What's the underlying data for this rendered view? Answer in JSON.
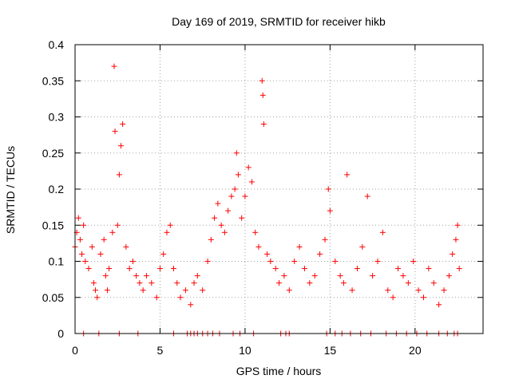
{
  "chart_data": {
    "type": "scatter",
    "title": "Day 169 of 2019, SRMTID for receiver hikb",
    "xlabel": "GPS time / hours",
    "ylabel": "SRMTID / TECUs",
    "xlim": [
      0,
      24
    ],
    "ylim": [
      0,
      0.4
    ],
    "x_ticks": [
      0,
      5,
      10,
      15,
      20
    ],
    "x_tick_labels": [
      "0",
      "5",
      "10",
      "15",
      "20"
    ],
    "y_ticks": [
      0,
      0.05,
      0.1,
      0.15,
      0.2,
      0.25,
      0.3,
      0.35,
      0.4
    ],
    "y_tick_labels": [
      "0",
      "0.05",
      "0.1",
      "0.15",
      "0.2",
      "0.25",
      "0.3",
      "0.35",
      "0.4"
    ],
    "grid": true,
    "marker": "+",
    "color": "#ff0000",
    "series": [
      {
        "x": [
          0.0,
          0.1,
          0.2,
          0.3,
          0.4,
          0.5,
          0.6,
          0.8,
          1.0,
          1.1,
          1.2,
          1.3,
          1.5,
          1.7,
          1.8,
          1.9,
          2.0,
          2.2,
          2.3,
          2.35,
          2.5,
          2.6,
          2.7,
          2.8,
          3.0,
          3.2,
          3.4,
          3.6,
          3.8,
          4.0,
          4.2,
          4.5,
          4.8,
          5.0,
          5.2,
          5.4,
          5.6,
          5.8,
          6.0,
          6.2,
          6.5,
          6.8,
          7.0,
          7.2,
          7.5,
          7.8,
          8.0,
          8.2,
          8.4,
          8.6,
          8.8,
          9.0,
          9.2,
          9.4,
          9.5,
          9.6,
          9.8,
          10.0,
          10.2,
          10.4,
          10.6,
          10.8,
          11.0,
          11.05,
          11.1,
          11.3,
          11.5,
          11.8,
          12.0,
          12.3,
          12.6,
          12.9,
          13.2,
          13.5,
          13.8,
          14.1,
          14.4,
          14.7,
          14.9,
          15.0,
          15.3,
          15.6,
          15.8,
          16.0,
          16.3,
          16.6,
          16.9,
          17.2,
          17.5,
          17.8,
          18.1,
          18.4,
          18.7,
          19.0,
          19.3,
          19.6,
          19.9,
          20.2,
          20.5,
          20.8,
          21.1,
          21.4,
          21.7,
          22.0,
          22.2,
          22.4,
          22.5,
          22.6
        ],
        "y": [
          0.12,
          0.14,
          0.16,
          0.13,
          0.11,
          0.15,
          0.1,
          0.09,
          0.12,
          0.07,
          0.06,
          0.05,
          0.11,
          0.13,
          0.08,
          0.06,
          0.09,
          0.14,
          0.37,
          0.28,
          0.15,
          0.22,
          0.26,
          0.29,
          0.12,
          0.09,
          0.1,
          0.08,
          0.07,
          0.06,
          0.08,
          0.07,
          0.05,
          0.09,
          0.11,
          0.14,
          0.15,
          0.09,
          0.07,
          0.05,
          0.06,
          0.04,
          0.07,
          0.08,
          0.06,
          0.1,
          0.13,
          0.16,
          0.18,
          0.15,
          0.14,
          0.17,
          0.19,
          0.2,
          0.25,
          0.22,
          0.16,
          0.19,
          0.23,
          0.21,
          0.14,
          0.12,
          0.35,
          0.33,
          0.29,
          0.11,
          0.1,
          0.09,
          0.07,
          0.08,
          0.06,
          0.1,
          0.12,
          0.09,
          0.07,
          0.08,
          0.11,
          0.13,
          0.2,
          0.17,
          0.1,
          0.08,
          0.07,
          0.22,
          0.06,
          0.09,
          0.12,
          0.19,
          0.08,
          0.1,
          0.14,
          0.06,
          0.05,
          0.09,
          0.08,
          0.07,
          0.1,
          0.06,
          0.05,
          0.09,
          0.07,
          0.04,
          0.06,
          0.08,
          0.11,
          0.13,
          0.15,
          0.09
        ]
      },
      {
        "x": [
          0.5,
          1.4,
          2.6,
          3.7,
          5.8,
          6.6,
          6.8,
          7.0,
          7.2,
          7.5,
          7.8,
          8.1,
          8.5,
          9.3,
          9.7,
          10.5,
          12.1,
          12.4,
          12.6,
          14.8,
          15.3,
          15.7,
          16.2,
          16.8,
          17.4,
          18.3,
          18.9,
          19.5,
          20.1,
          20.7,
          21.4,
          21.9,
          22.3,
          22.5
        ],
        "y": [
          0,
          0,
          0,
          0,
          0,
          0,
          0,
          0,
          0,
          0,
          0,
          0,
          0,
          0,
          0,
          0,
          0,
          0,
          0,
          0,
          0,
          0,
          0,
          0,
          0,
          0,
          0,
          0,
          0,
          0,
          0,
          0,
          0,
          0
        ]
      }
    ]
  }
}
